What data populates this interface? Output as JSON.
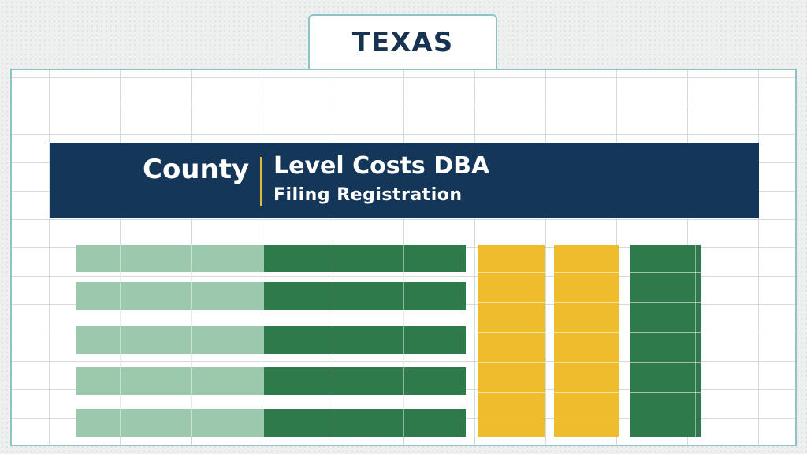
{
  "tab": {
    "label": "TEXAS"
  },
  "banner": {
    "left_text": "County",
    "main_title": "Level Costs DBA",
    "subtitle": "Filing Registration"
  },
  "colors": {
    "banner": "#133659",
    "accent": "#e2b93b",
    "light_green": "#9cc9ad",
    "dark_green": "#2f7a4a",
    "yellow": "#efbc2e",
    "sheet_border": "#8fc3c8"
  }
}
